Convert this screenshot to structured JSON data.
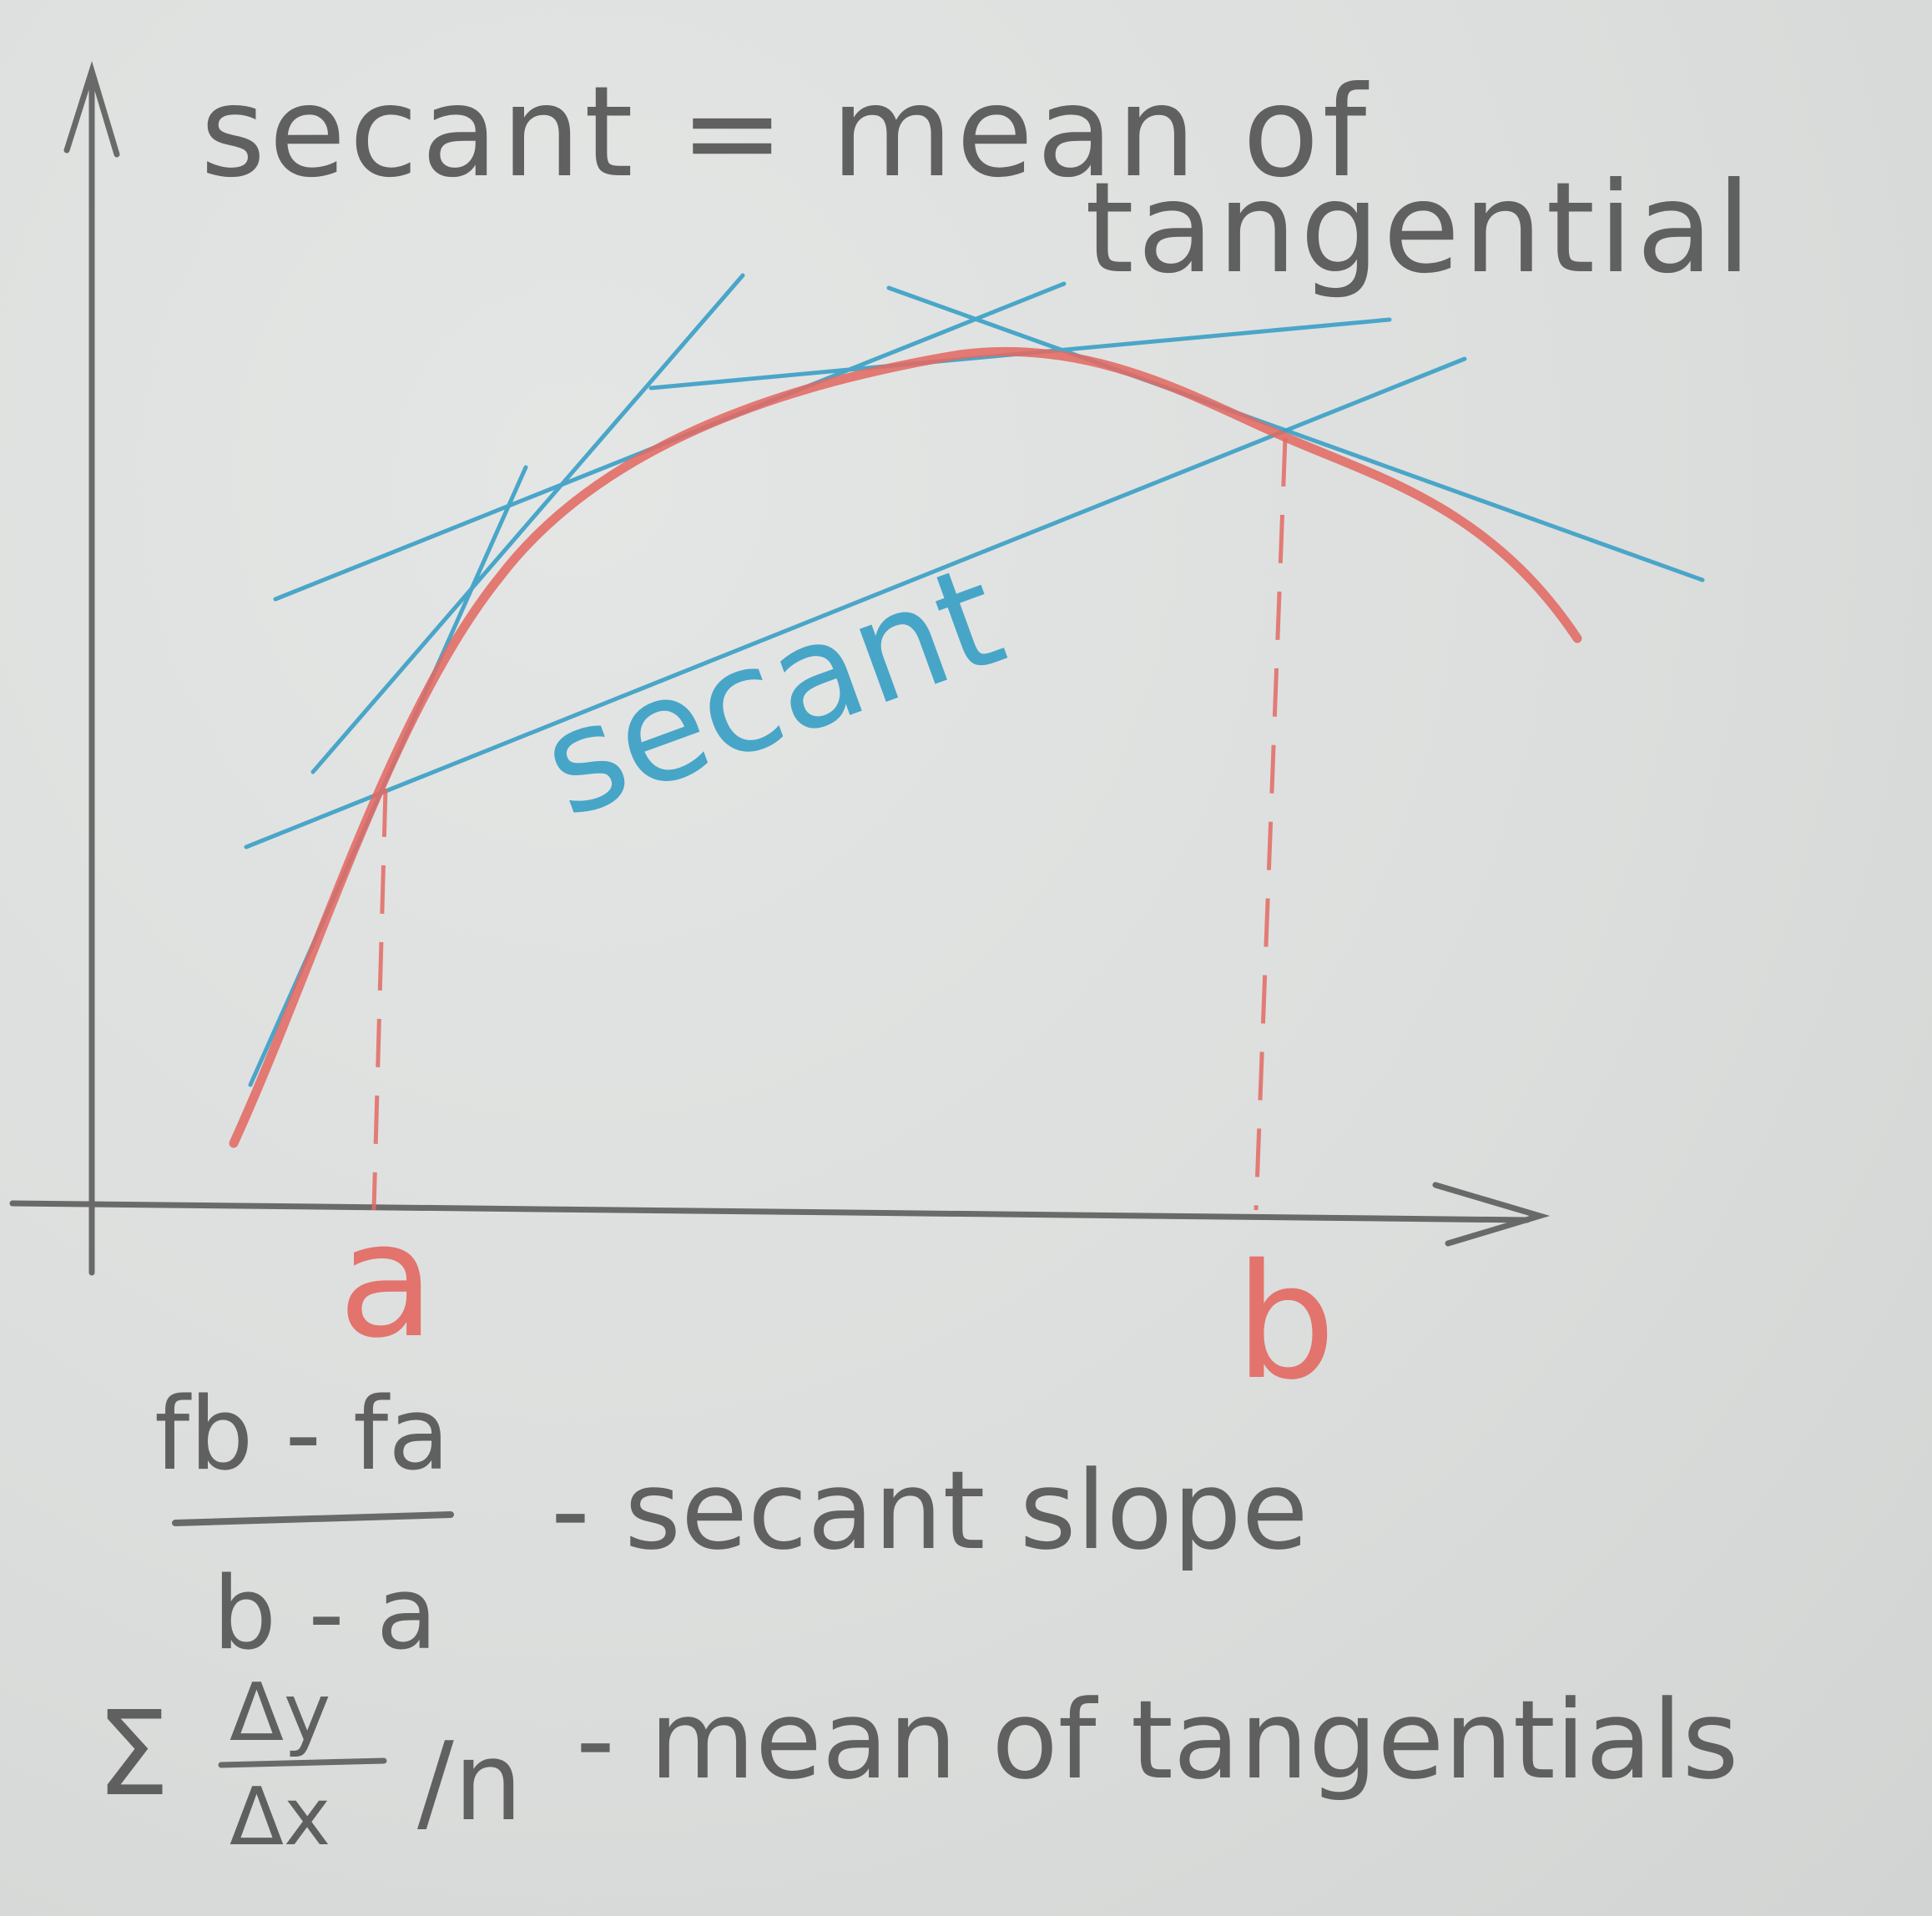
{
  "title": {
    "line1": "secant = mean of",
    "line2": "tangential"
  },
  "labels": {
    "secant": "secant",
    "a": "a",
    "b": "b"
  },
  "formula": {
    "numerator": "fb - fa",
    "denominator": "b - a",
    "secant_desc": "- secant slope",
    "sum_symbol": "Σ",
    "dy": "Δy",
    "dx": "Δx",
    "over_n": "/n",
    "tangentials_desc": "- mean of tangentials"
  },
  "colors": {
    "pencil_gray": "#555555",
    "curve_red": "#e26a63",
    "line_blue": "#3aa0c6",
    "paper": "#dcdedd"
  }
}
